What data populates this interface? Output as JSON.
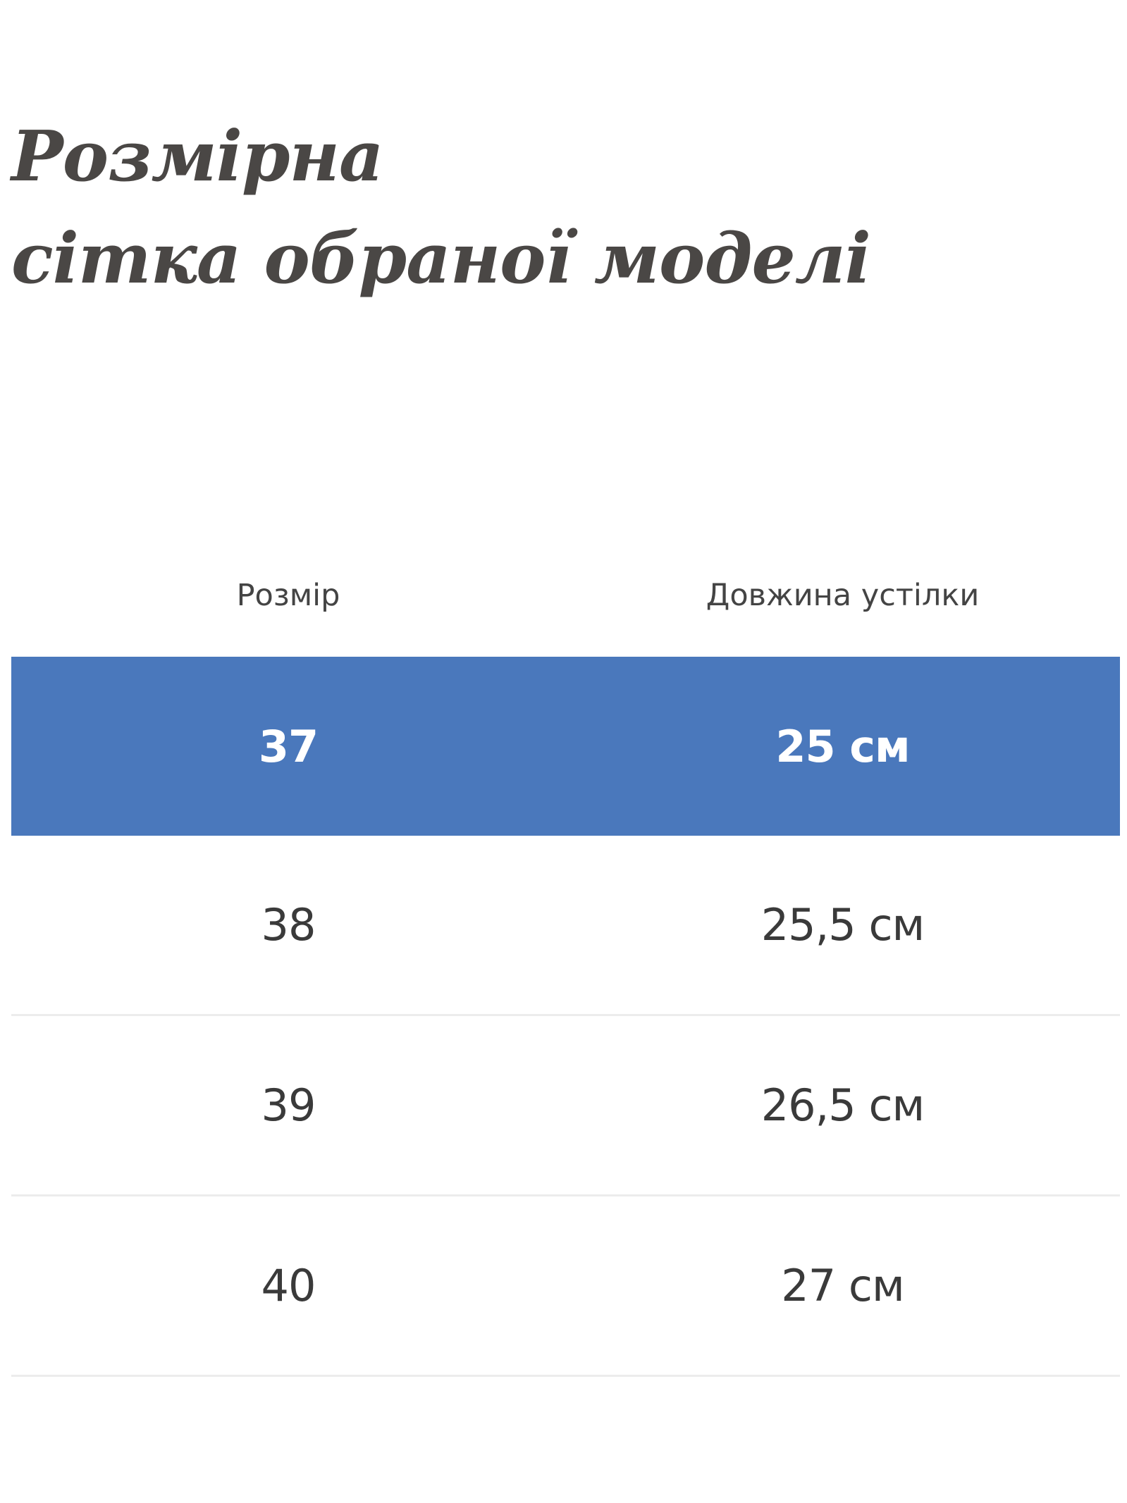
{
  "title": {
    "line1": "Розмірна",
    "line2": "сітка обраної моделі"
  },
  "table": {
    "headers": {
      "size": "Розмір",
      "insole_length": "Довжина устілки"
    },
    "rows": [
      {
        "size": "37",
        "insole_length": "25 см",
        "highlighted": true
      },
      {
        "size": "38",
        "insole_length": "25,5 см",
        "highlighted": false
      },
      {
        "size": "39",
        "insole_length": "26,5 см",
        "highlighted": false
      },
      {
        "size": "40",
        "insole_length": "27 см",
        "highlighted": false
      }
    ]
  },
  "colors": {
    "highlight_row": "#4a78bc",
    "title_text": "#4a4745",
    "row_divider": "#ececec"
  }
}
